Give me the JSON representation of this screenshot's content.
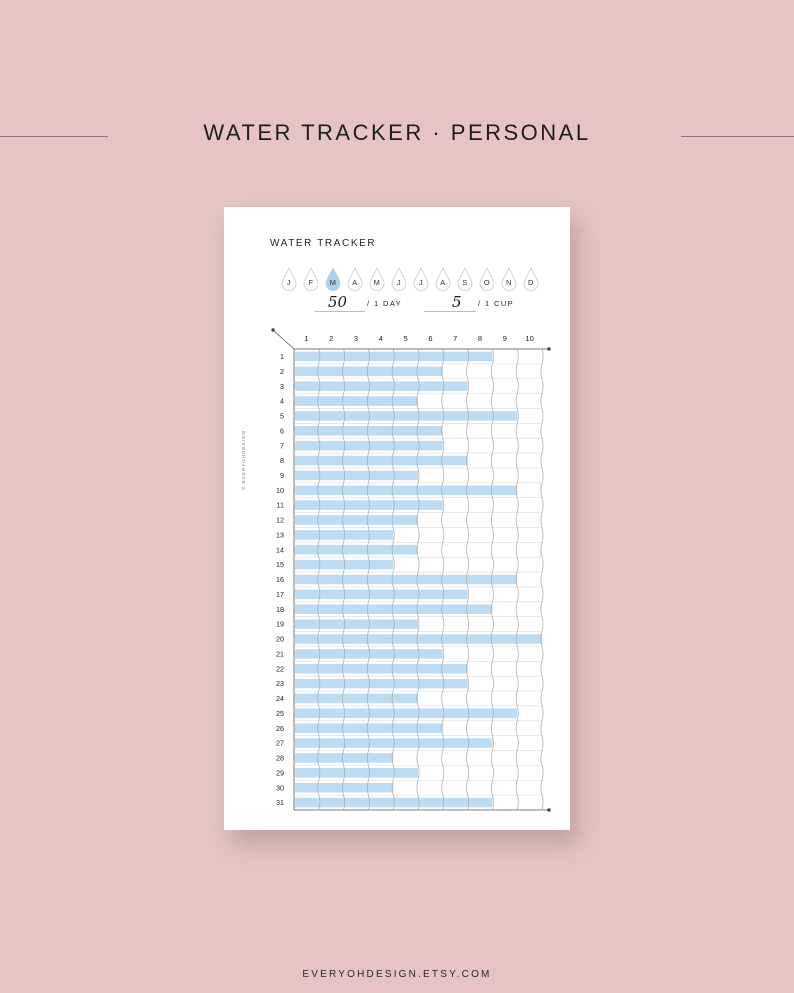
{
  "header": {
    "title": "WATER TRACKER · PERSONAL"
  },
  "footer": {
    "text": "EVERYOHDESIGN.ETSY.COM"
  },
  "sheet": {
    "title": "WATER TRACKER",
    "copyright": "© EVERYOHDESIGN",
    "months": [
      "J",
      "F",
      "M",
      "A",
      "M",
      "J",
      "J",
      "A",
      "S",
      "O",
      "N",
      "D"
    ],
    "selected_month_index": 2,
    "daily_goal": {
      "value": "50",
      "label": "/ 1 DAY"
    },
    "cup_size": {
      "value": "5",
      "label": "/ 1 CUP"
    }
  },
  "colors": {
    "background": "#e5c4c3",
    "bar": "#bcdcf4",
    "drop_selected": "#a9d1ef",
    "grid": "#a9a9a9"
  },
  "chart_data": {
    "type": "bar",
    "orientation": "horizontal",
    "columns": [
      1,
      2,
      3,
      4,
      5,
      6,
      7,
      8,
      9,
      10
    ],
    "categories": [
      "1",
      "2",
      "3",
      "4",
      "5",
      "6",
      "7",
      "8",
      "9",
      "10",
      "11",
      "12",
      "13",
      "14",
      "15",
      "16",
      "17",
      "18",
      "19",
      "20",
      "21",
      "22",
      "23",
      "24",
      "25",
      "26",
      "27",
      "28",
      "29",
      "30",
      "31"
    ],
    "values": [
      8,
      6,
      7,
      5,
      9,
      6,
      6,
      7,
      5,
      9,
      6,
      5,
      4,
      5,
      4,
      9,
      7,
      8,
      5,
      10,
      6,
      7,
      7,
      5,
      9,
      6,
      8,
      4,
      5,
      4,
      8
    ],
    "xlim": [
      0,
      10
    ],
    "grid": true
  }
}
